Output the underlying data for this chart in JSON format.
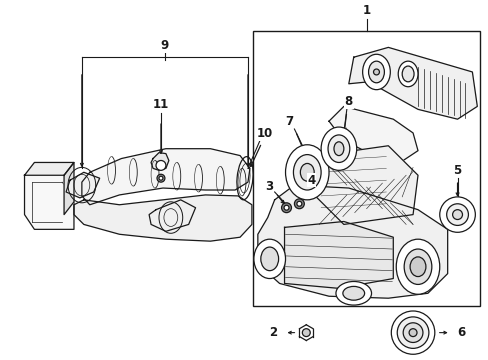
{
  "bg_color": "#ffffff",
  "line_color": "#1a1a1a",
  "fig_width": 4.89,
  "fig_height": 3.6,
  "dpi": 100,
  "label_fontsize": 8.5,
  "lw": 0.9
}
